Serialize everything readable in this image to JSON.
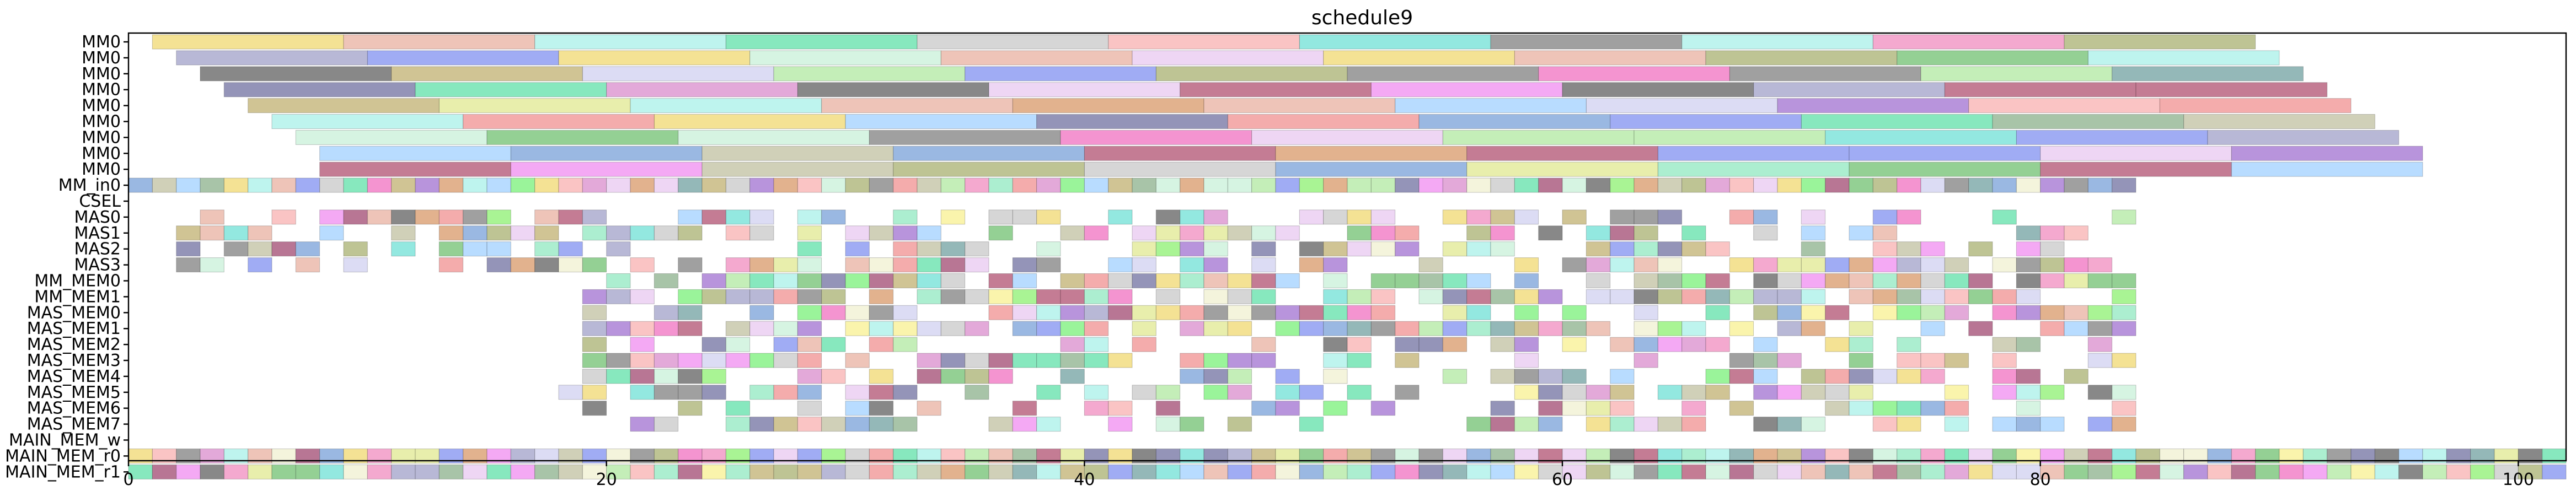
{
  "chart_data": {
    "type": "gantt",
    "title": "schedule9",
    "xlabel": "",
    "ylabel": "",
    "xlim": [
      0,
      102
    ],
    "x_ticks": [
      0,
      20,
      40,
      60,
      80,
      100
    ],
    "grid": false,
    "legend": "none",
    "rows": [
      "MM0",
      "MM0",
      "MM0",
      "MM0",
      "MM0",
      "MM0",
      "MM0",
      "MM0",
      "MM0",
      "MM_in0",
      "CSEL",
      "MAS0",
      "MAS1",
      "MAS2",
      "MAS3",
      "MM_MEM0",
      "MM_MEM1",
      "MAS_MEM0",
      "MAS_MEM1",
      "MAS_MEM2",
      "MAS_MEM3",
      "MAS_MEM4",
      "MAS_MEM5",
      "MAS_MEM6",
      "MAS_MEM7",
      "MAIN_MEM_w",
      "MAIN_MEM_r0",
      "MAIN_MEM_r1"
    ],
    "palette": [
      "#f08cf0",
      "#5fe0a8",
      "#d98ccc",
      "#6fe0d6",
      "#8bb08b",
      "#f08cbf",
      "#c8c8c8",
      "#b05070",
      "#d89868",
      "#8cf070",
      "#8090f0",
      "#a070d0",
      "#78f078",
      "#a8f0e8",
      "#a0a0c8",
      "#c0c0a0",
      "#70a0a0",
      "#a8b070",
      "#a04870",
      "#c8f0d8",
      "#e8b0a0",
      "#f070c0",
      "#78a0d8",
      "#c0b070",
      "#f8b0b0",
      "#7070a0",
      "#f8f090",
      "#90e8c0",
      "#f0d870",
      "#b0e8a0",
      "#f09090",
      "#d0d0f0",
      "#70c070",
      "#f0f0d0",
      "#e0e890",
      "#808080",
      "#a0d0ff",
      "#606060",
      "#e8c8f0"
    ],
    "lanes": [
      {
        "row": 0,
        "start": 1.0,
        "seg": 8.0,
        "count": 11
      },
      {
        "row": 1,
        "start": 2.0,
        "seg": 8.0,
        "count": 11
      },
      {
        "row": 2,
        "start": 3.0,
        "seg": 8.0,
        "count": 11
      },
      {
        "row": 3,
        "start": 4.0,
        "seg": 8.0,
        "count": 11
      },
      {
        "row": 4,
        "start": 5.0,
        "seg": 8.0,
        "count": 11
      },
      {
        "row": 5,
        "start": 6.0,
        "seg": 8.0,
        "count": 11
      },
      {
        "row": 6,
        "start": 7.0,
        "seg": 8.0,
        "count": 11
      },
      {
        "row": 7,
        "start": 8.0,
        "seg": 8.0,
        "count": 11
      },
      {
        "row": 8,
        "start": 8.0,
        "seg": 8.0,
        "count": 11
      }
    ],
    "cell_rows": [
      {
        "row": 9,
        "start": 0.0,
        "end": 84.0,
        "step": 1.0,
        "density": 1.0
      },
      {
        "row": 11,
        "start": 1.0,
        "end": 84.0,
        "step": 1.0,
        "density": 0.62
      },
      {
        "row": 12,
        "start": 1.0,
        "end": 84.0,
        "step": 1.0,
        "density": 0.58
      },
      {
        "row": 13,
        "start": 1.0,
        "end": 84.0,
        "step": 1.0,
        "density": 0.6
      },
      {
        "row": 14,
        "start": 1.0,
        "end": 84.0,
        "step": 1.0,
        "density": 0.55
      },
      {
        "row": 15,
        "start": 19.0,
        "end": 84.0,
        "step": 1.0,
        "density": 0.85
      },
      {
        "row": 16,
        "start": 19.0,
        "end": 84.0,
        "step": 1.0,
        "density": 0.8
      },
      {
        "row": 17,
        "start": 19.0,
        "end": 84.0,
        "step": 1.0,
        "density": 0.72
      },
      {
        "row": 18,
        "start": 19.0,
        "end": 84.0,
        "step": 1.0,
        "density": 0.7
      },
      {
        "row": 19,
        "start": 19.0,
        "end": 84.0,
        "step": 1.0,
        "density": 0.55
      },
      {
        "row": 20,
        "start": 19.0,
        "end": 84.0,
        "step": 1.0,
        "density": 0.55
      },
      {
        "row": 21,
        "start": 19.0,
        "end": 84.0,
        "step": 1.0,
        "density": 0.6
      },
      {
        "row": 22,
        "start": 18.0,
        "end": 84.0,
        "step": 1.0,
        "density": 0.62
      },
      {
        "row": 23,
        "start": 18.0,
        "end": 84.0,
        "step": 1.0,
        "density": 0.55
      },
      {
        "row": 24,
        "start": 20.0,
        "end": 84.0,
        "step": 1.0,
        "density": 0.6
      },
      {
        "row": 26,
        "start": 0.0,
        "end": 102.0,
        "step": 1.0,
        "density": 1.0
      },
      {
        "row": 27,
        "start": 0.0,
        "end": 102.0,
        "step": 1.0,
        "density": 1.0
      }
    ]
  }
}
